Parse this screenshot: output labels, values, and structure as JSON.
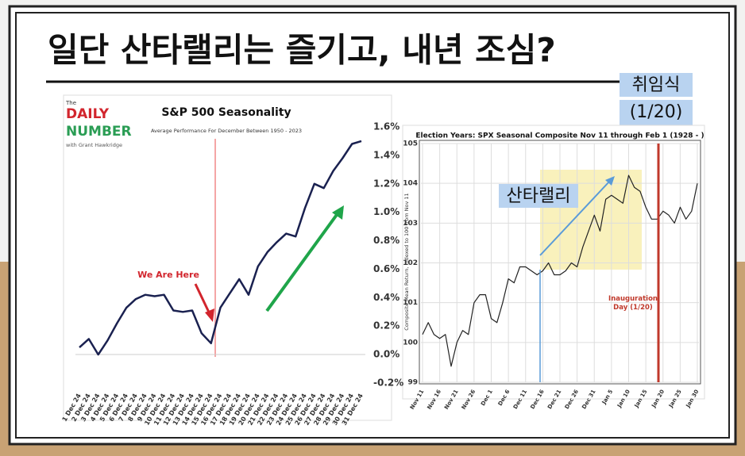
{
  "header": {
    "title": "일단 산타랠리는 즐기고, 내년 조심?",
    "note": "취임식 (1/20)"
  },
  "chart_data": [
    {
      "type": "line",
      "title": "S&P 500 Seasonality",
      "subtitle": "Average Performance For December Between 1950 - 2023",
      "brand": [
        "The",
        "DAILY",
        "NUMBER",
        "with Grant Hawkridge"
      ],
      "annotation": "We Are Here",
      "color": "#1a2150",
      "categories": [
        "1 Dec 24",
        "2 Dec 24",
        "3 Dec 24",
        "4 Dec 24",
        "5 Dec 24",
        "6 Dec 24",
        "7 Dec 24",
        "8 Dec 24",
        "9 Dec 24",
        "10 Dec 24",
        "11 Dec 24",
        "12 Dec 24",
        "13 Dec 24",
        "14 Dec 24",
        "15 Dec 24",
        "16 Dec 24",
        "17 Dec 24",
        "18 Dec 24",
        "19 Dec 24",
        "20 Dec 24",
        "21 Dec 24",
        "22 Dec 24",
        "23 Dec 24",
        "24 Dec 24",
        "25 Dec 24",
        "26 Dec 24",
        "27 Dec 24",
        "28 Dec 24",
        "29 Dec 24",
        "30 Dec 24",
        "31 Dec 24"
      ],
      "values": [
        0.05,
        0.11,
        0.0,
        0.1,
        0.22,
        0.33,
        0.39,
        0.42,
        0.41,
        0.42,
        0.31,
        0.3,
        0.31,
        0.15,
        0.08,
        0.33,
        0.43,
        0.53,
        0.42,
        0.62,
        0.72,
        0.79,
        0.85,
        0.83,
        1.03,
        1.2,
        1.17,
        1.29,
        1.38,
        1.48,
        1.5
      ],
      "ylim": [
        -0.2,
        1.6
      ],
      "yticks": [
        {
          "value": -0.2,
          "label": "-0.2%"
        },
        {
          "value": 0.0,
          "label": "0.0%"
        },
        {
          "value": 0.2,
          "label": "0.2%"
        },
        {
          "value": 0.4,
          "label": "0.4%"
        },
        {
          "value": 0.6,
          "label": "0.6%"
        },
        {
          "value": 0.8,
          "label": "0.8%"
        },
        {
          "value": 1.0,
          "label": "1.0%"
        },
        {
          "value": 1.2,
          "label": "1.2%"
        },
        {
          "value": 1.4,
          "label": "1.4%"
        },
        {
          "value": 1.6,
          "label": "1.6%"
        }
      ],
      "grid": false
    },
    {
      "type": "line",
      "title": "Election Years: SPX Seasonal Composite Nov 11 through Feb 1 (1928 - )",
      "ylabel": "Composite Mean Return, Indexed to 100 from Nov 11",
      "annotations": [
        "산타랠리",
        "Inauguration Day (1/20)"
      ],
      "color": "#222222",
      "categories": [
        "Nov 11",
        null,
        null,
        "Nov 16",
        null,
        null,
        "Nov 21",
        null,
        null,
        "Nov 26",
        null,
        null,
        "Dec 1",
        null,
        null,
        "Dec 6",
        null,
        null,
        "Dec 11",
        null,
        null,
        "Dec 16",
        null,
        null,
        "Dec 21",
        null,
        null,
        "Dec 26",
        null,
        null,
        "Dec 31",
        null,
        null,
        "Jan 5",
        null,
        null,
        "Jan 10",
        null,
        null,
        "Jan 15",
        null,
        null,
        "Jan 20",
        null,
        null,
        "Jan 25",
        null,
        null,
        "Jan 30"
      ],
      "values": [
        100.2,
        100.5,
        100.2,
        100.1,
        100.2,
        99.4,
        100.0,
        100.3,
        100.2,
        101.0,
        101.2,
        101.2,
        100.6,
        100.5,
        101.0,
        101.6,
        101.5,
        101.9,
        101.9,
        101.8,
        101.7,
        101.8,
        102.0,
        101.7,
        101.7,
        101.8,
        102.0,
        101.9,
        102.4,
        102.8,
        103.2,
        102.8,
        103.6,
        103.7,
        103.6,
        103.5,
        104.2,
        103.9,
        103.8,
        103.4,
        103.1,
        103.1,
        103.3,
        103.2,
        103.0,
        103.4,
        103.1,
        103.3,
        104.0
      ],
      "ylim": [
        99,
        105
      ],
      "yticks": [
        99,
        100,
        101,
        102,
        103,
        104,
        105
      ],
      "grid": true
    }
  ]
}
